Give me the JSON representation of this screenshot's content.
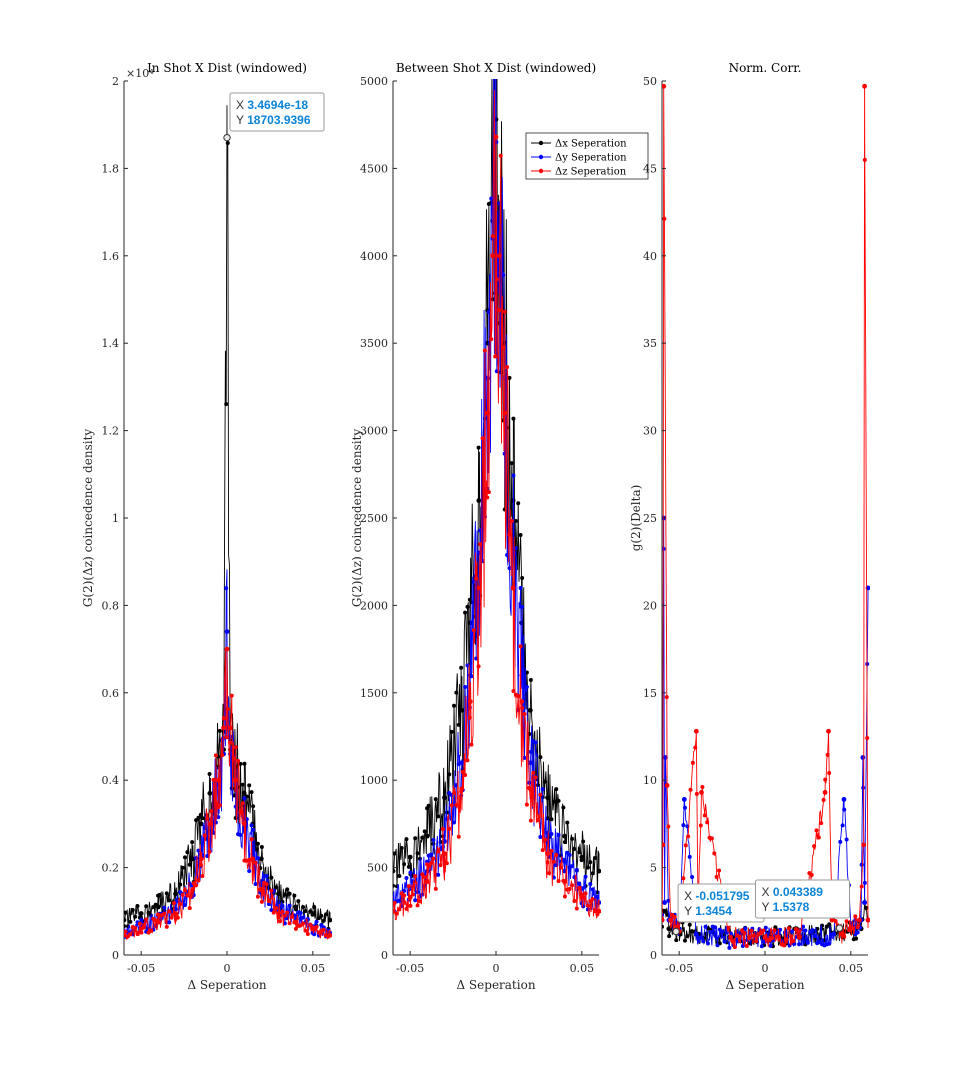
{
  "colors": {
    "x_series": "#000000",
    "y_series": "#0000ff",
    "z_series": "#ff0000",
    "tip_value": "#0a84d6"
  },
  "chart_data": [
    {
      "type": "line",
      "title": "In Shot X Dist (windowed)",
      "xlabel": "Δ Seperation",
      "ylabel": "G(2)(Δz) coincedence density",
      "xlim": [
        -0.06,
        0.06
      ],
      "ylim": [
        0,
        20000
      ],
      "xticks": [
        -0.05,
        0,
        0.05
      ],
      "xtick_labels": [
        "-0.05",
        "0",
        "0.05"
      ],
      "yticks": [
        0,
        2000,
        4000,
        6000,
        8000,
        10000,
        12000,
        14000,
        16000,
        18000,
        20000
      ],
      "ytick_labels": [
        "0",
        "0.2",
        "0.4",
        "0.6",
        "0.8",
        "1",
        "1.2",
        "1.4",
        "1.6",
        "1.8",
        "2"
      ],
      "yexponent": "×10⁴",
      "series": [
        {
          "x": [
            -0.06,
            -0.05,
            -0.04,
            -0.03,
            -0.02,
            -0.015,
            -0.01,
            -0.005,
            -0.002,
            0,
            0.002,
            0.005,
            0.01,
            0.015,
            0.02,
            0.03,
            0.04,
            0.05,
            0.06
          ],
          "y": [
            800,
            950,
            1100,
            1400,
            2200,
            3000,
            3700,
            4300,
            4700,
            18704,
            4700,
            4300,
            3700,
            3000,
            2200,
            1400,
            1100,
            950,
            800
          ]
        },
        {
          "x": [
            -0.06,
            -0.05,
            -0.04,
            -0.03,
            -0.02,
            -0.015,
            -0.01,
            -0.005,
            -0.002,
            0,
            0.002,
            0.005,
            0.01,
            0.015,
            0.02,
            0.03,
            0.04,
            0.05,
            0.06
          ],
          "y": [
            500,
            650,
            800,
            1050,
            1600,
            2300,
            3000,
            3900,
            4600,
            7400,
            4600,
            3900,
            3000,
            2300,
            1600,
            1050,
            800,
            650,
            500
          ]
        },
        {
          "x": [
            -0.06,
            -0.05,
            -0.04,
            -0.03,
            -0.02,
            -0.015,
            -0.01,
            -0.005,
            -0.002,
            0,
            0.002,
            0.005,
            0.01,
            0.015,
            0.02,
            0.03,
            0.04,
            0.05,
            0.06
          ],
          "y": [
            450,
            600,
            750,
            950,
            1500,
            2200,
            3000,
            4000,
            5200,
            7000,
            5200,
            4000,
            3000,
            2200,
            1500,
            950,
            750,
            600,
            450
          ]
        }
      ],
      "datatips": [
        {
          "x": "3.4694e-18",
          "y": "18703.9396",
          "xv": 0,
          "yv": 18703.9396
        }
      ]
    },
    {
      "type": "line",
      "title": "Between Shot X Dist (windowed)",
      "xlabel": "Δ Seperation",
      "ylabel": "G(2)(Δz) coincedence density",
      "xlim": [
        -0.06,
        0.06
      ],
      "ylim": [
        0,
        5000
      ],
      "xticks": [
        -0.05,
        0,
        0.05
      ],
      "xtick_labels": [
        "-0.05",
        "0",
        "0.05"
      ],
      "yticks": [
        0,
        500,
        1000,
        1500,
        2000,
        2500,
        3000,
        3500,
        4000,
        4500,
        5000
      ],
      "ytick_labels": [
        "0",
        "500",
        "1000",
        "1500",
        "2000",
        "2500",
        "3000",
        "3500",
        "4000",
        "4500",
        "5000"
      ],
      "series": [
        {
          "name": "Δx Seperation",
          "x": [
            -0.06,
            -0.05,
            -0.04,
            -0.03,
            -0.02,
            -0.015,
            -0.01,
            -0.005,
            -0.002,
            0,
            0.002,
            0.005,
            0.01,
            0.015,
            0.02,
            0.03,
            0.04,
            0.05,
            0.06
          ],
          "y": [
            480,
            560,
            680,
            900,
            1400,
            1900,
            2600,
            3500,
            4200,
            4780,
            4200,
            3500,
            2600,
            1900,
            1400,
            900,
            680,
            560,
            480
          ]
        },
        {
          "name": "Δy Seperation",
          "x": [
            -0.06,
            -0.05,
            -0.04,
            -0.03,
            -0.02,
            -0.015,
            -0.01,
            -0.005,
            -0.002,
            0,
            0.002,
            0.005,
            0.01,
            0.015,
            0.02,
            0.03,
            0.04,
            0.05,
            0.06
          ],
          "y": [
            300,
            380,
            480,
            650,
            1100,
            1600,
            2300,
            3300,
            4100,
            4650,
            4100,
            3300,
            2300,
            1600,
            1100,
            650,
            480,
            380,
            300
          ]
        },
        {
          "name": "Δz Seperation",
          "x": [
            -0.06,
            -0.05,
            -0.04,
            -0.03,
            -0.02,
            -0.015,
            -0.01,
            -0.005,
            -0.002,
            0,
            0.002,
            0.005,
            0.01,
            0.015,
            0.02,
            0.03,
            0.04,
            0.05,
            0.06
          ],
          "y": [
            250,
            330,
            420,
            580,
            950,
            1450,
            2100,
            3100,
            4000,
            4680,
            4000,
            3100,
            2100,
            1450,
            950,
            580,
            420,
            330,
            250
          ]
        }
      ],
      "legend": "top-right"
    },
    {
      "type": "line",
      "title": "Norm. Corr.",
      "xlabel": "Δ Seperation",
      "ylabel": "g(2)(Delta)",
      "xlim": [
        -0.06,
        0.06
      ],
      "ylim": [
        0,
        50
      ],
      "xticks": [
        -0.05,
        0,
        0.05
      ],
      "xtick_labels": [
        "-0.05",
        "0",
        "0.05"
      ],
      "yticks": [
        0,
        5,
        10,
        15,
        20,
        25,
        30,
        35,
        40,
        45,
        50
      ],
      "ytick_labels": [
        "0",
        "5",
        "10",
        "15",
        "20",
        "25",
        "30",
        "35",
        "40",
        "45",
        "50"
      ],
      "series": [
        {
          "x": [
            -0.06,
            -0.058,
            -0.056,
            -0.05,
            -0.04,
            -0.02,
            0,
            0.02,
            0.04,
            0.05,
            0.056,
            0.058,
            0.06
          ],
          "y": [
            2,
            2.5,
            1.5,
            1.3,
            1.2,
            1.1,
            1.0,
            1.1,
            1.2,
            1.4,
            1.5,
            3,
            2
          ]
        },
        {
          "x": [
            -0.06,
            -0.059,
            -0.0585,
            -0.058,
            -0.056,
            -0.05,
            -0.047,
            -0.04,
            -0.02,
            0,
            0.02,
            0.04,
            0.046,
            0.05,
            0.056,
            0.057,
            0.058,
            0.06
          ],
          "y": [
            2,
            25,
            3,
            11.3,
            2,
            1.5,
            8.9,
            1.2,
            1.0,
            1.0,
            1.0,
            1.2,
            8.9,
            1.5,
            2,
            11.3,
            3,
            21
          ]
        },
        {
          "x": [
            -0.06,
            -0.0595,
            -0.059,
            -0.057,
            -0.055,
            -0.05,
            -0.04,
            -0.039,
            -0.037,
            -0.02,
            0,
            0.02,
            0.035,
            0.037,
            0.039,
            0.045,
            0.05,
            0.055,
            0.0575,
            0.058,
            0.06
          ],
          "y": [
            2,
            6.3,
            49.7,
            9.7,
            2,
            1.35,
            12.8,
            2,
            9.3,
            1.0,
            1.0,
            1.0,
            9.3,
            12.8,
            2,
            1.2,
            1.54,
            2,
            6.3,
            49.7,
            2
          ]
        }
      ],
      "datatips": [
        {
          "x": "-0.051795",
          "y": "1.3454",
          "xv": -0.051795,
          "yv": 1.3454
        },
        {
          "x": "0.043389",
          "y": "1.5378",
          "xv": 0.043389,
          "yv": 1.5378
        }
      ]
    }
  ]
}
